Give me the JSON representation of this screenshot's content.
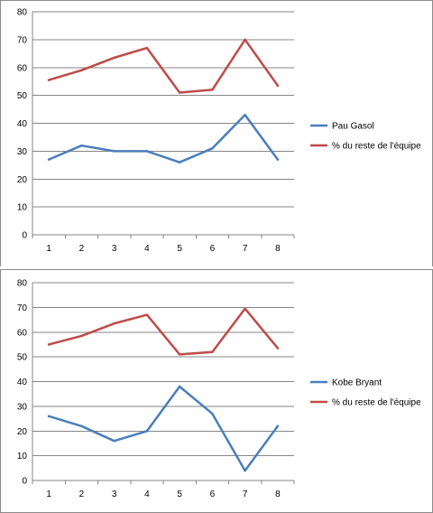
{
  "chart_data": [
    {
      "type": "line",
      "x": [
        1,
        2,
        3,
        4,
        5,
        6,
        7,
        8
      ],
      "ylim": [
        0,
        80
      ],
      "yticks": [
        0,
        10,
        20,
        30,
        40,
        50,
        60,
        70,
        80
      ],
      "grid": true,
      "legend_position": "right",
      "series": [
        {
          "name": "Pau Gasol",
          "color": "#4a7ebb",
          "values": [
            27,
            32,
            30,
            30,
            26,
            31,
            43,
            27
          ]
        },
        {
          "name": "% du reste de l'équipe",
          "color": "#be4b48",
          "values": [
            55.5,
            59,
            63.5,
            67,
            51,
            52,
            70,
            53.5
          ]
        }
      ]
    },
    {
      "type": "line",
      "x": [
        1,
        2,
        3,
        4,
        5,
        6,
        7,
        8
      ],
      "ylim": [
        0,
        80
      ],
      "yticks": [
        0,
        10,
        20,
        30,
        40,
        50,
        60,
        70,
        80
      ],
      "grid": true,
      "legend_position": "right",
      "series": [
        {
          "name": "Kobe Bryant",
          "color": "#4a7ebb",
          "values": [
            26,
            22,
            16,
            20,
            38,
            27,
            4,
            22
          ]
        },
        {
          "name": "% du reste de l'équipe",
          "color": "#be4b48",
          "values": [
            55,
            58.5,
            63.5,
            67,
            51,
            52,
            69.5,
            53.5
          ]
        }
      ]
    }
  ]
}
